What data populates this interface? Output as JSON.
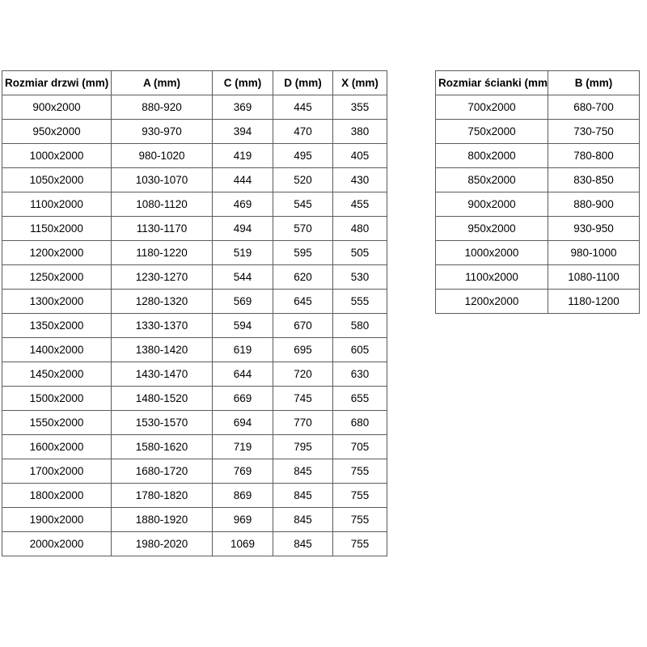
{
  "page": {
    "background_color": "#ffffff",
    "border_color": "#5b5b5b",
    "text_color": "#000000"
  },
  "doors_table": {
    "headers": [
      "Rozmiar drzwi (mm)",
      "A (mm)",
      "C (mm)",
      "D (mm)",
      "X (mm)"
    ],
    "rows": [
      [
        "900x2000",
        "880-920",
        "369",
        "445",
        "355"
      ],
      [
        "950x2000",
        "930-970",
        "394",
        "470",
        "380"
      ],
      [
        "1000x2000",
        "980-1020",
        "419",
        "495",
        "405"
      ],
      [
        "1050x2000",
        "1030-1070",
        "444",
        "520",
        "430"
      ],
      [
        "1100x2000",
        "1080-1120",
        "469",
        "545",
        "455"
      ],
      [
        "1150x2000",
        "1130-1170",
        "494",
        "570",
        "480"
      ],
      [
        "1200x2000",
        "1180-1220",
        "519",
        "595",
        "505"
      ],
      [
        "1250x2000",
        "1230-1270",
        "544",
        "620",
        "530"
      ],
      [
        "1300x2000",
        "1280-1320",
        "569",
        "645",
        "555"
      ],
      [
        "1350x2000",
        "1330-1370",
        "594",
        "670",
        "580"
      ],
      [
        "1400x2000",
        "1380-1420",
        "619",
        "695",
        "605"
      ],
      [
        "1450x2000",
        "1430-1470",
        "644",
        "720",
        "630"
      ],
      [
        "1500x2000",
        "1480-1520",
        "669",
        "745",
        "655"
      ],
      [
        "1550x2000",
        "1530-1570",
        "694",
        "770",
        "680"
      ],
      [
        "1600x2000",
        "1580-1620",
        "719",
        "795",
        "705"
      ],
      [
        "1700x2000",
        "1680-1720",
        "769",
        "845",
        "755"
      ],
      [
        "1800x2000",
        "1780-1820",
        "869",
        "845",
        "755"
      ],
      [
        "1900x2000",
        "1880-1920",
        "969",
        "845",
        "755"
      ],
      [
        "2000x2000",
        "1980-2020",
        "1069",
        "845",
        "755"
      ]
    ]
  },
  "walls_table": {
    "headers": [
      "Rozmiar ścianki (mm)",
      "B (mm)"
    ],
    "rows": [
      [
        "700x2000",
        "680-700"
      ],
      [
        "750x2000",
        "730-750"
      ],
      [
        "800x2000",
        "780-800"
      ],
      [
        "850x2000",
        "830-850"
      ],
      [
        "900x2000",
        "880-900"
      ],
      [
        "950x2000",
        "930-950"
      ],
      [
        "1000x2000",
        "980-1000"
      ],
      [
        "1100x2000",
        "1080-1100"
      ],
      [
        "1200x2000",
        "1180-1200"
      ]
    ]
  }
}
